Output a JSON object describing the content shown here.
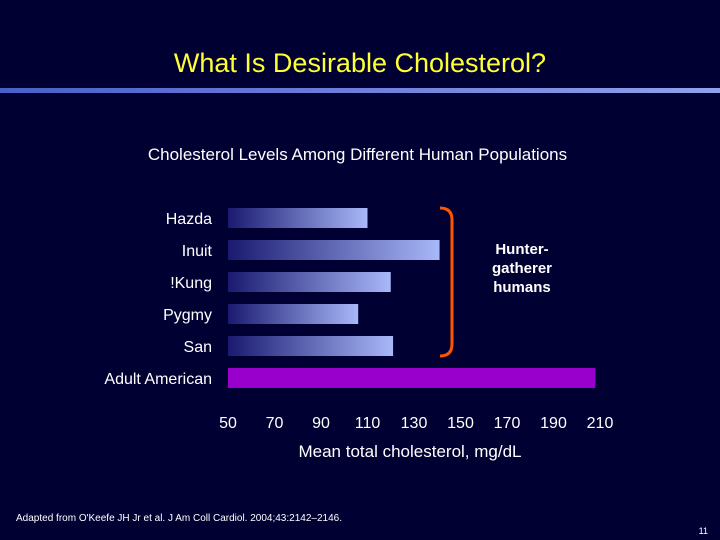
{
  "slide": {
    "title": "What Is Desirable Cholesterol?",
    "citation": "Adapted from O'Keefe JH Jr et al. J Am Coll Cardiol. 2004;43:2142–2146.",
    "page_number": "11",
    "title_color": "#ffff33",
    "background": "#000033"
  },
  "chart_data": {
    "type": "bar",
    "orientation": "horizontal",
    "title": "Cholesterol Levels Among Different Human Populations",
    "xlabel": "Mean total cholesterol, mg/dL",
    "ylabel": "",
    "categories": [
      "Hazda",
      "Inuit",
      "!Kung",
      "Pygmy",
      "San",
      "Adult American"
    ],
    "values": [
      110,
      141,
      120,
      106,
      121,
      208
    ],
    "xlim": [
      50,
      210
    ],
    "xticks": [
      "50",
      "70",
      "90",
      "110",
      "130",
      "150",
      "170",
      "190",
      "210"
    ],
    "grid": false,
    "bar_colors": [
      "#8ea2ee",
      "#8ea2ee",
      "#8ea2ee",
      "#8ea2ee",
      "#8ea2ee",
      "#9900cc"
    ],
    "annotation": {
      "text": "Hunter-gatherer humans",
      "bracket_color": "#ff5500",
      "covers": [
        "Hazda",
        "Inuit",
        "!Kung",
        "Pygmy",
        "San"
      ]
    }
  }
}
